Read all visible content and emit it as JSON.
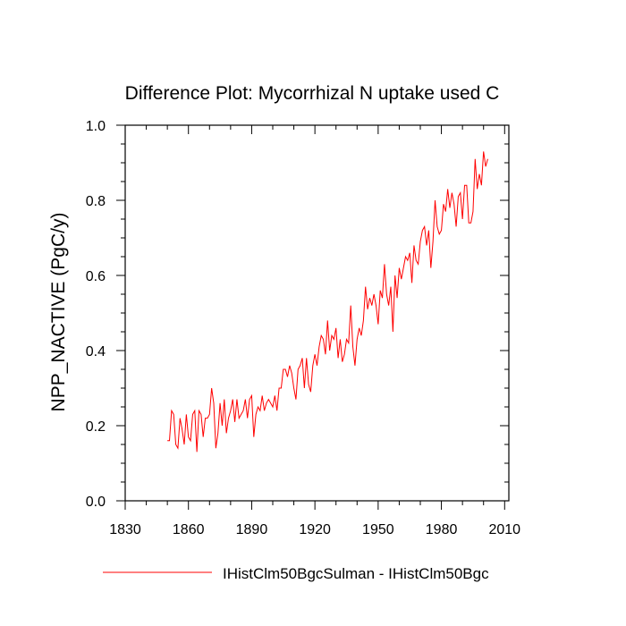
{
  "chart_data": {
    "type": "line",
    "title": "Difference Plot: Mycorrhizal N uptake used C",
    "ylabel": "NPP_NACTIVE  (PgC/y)",
    "xlabel": "",
    "xlim": [
      1830,
      2012
    ],
    "ylim": [
      0.0,
      1.0
    ],
    "xticks": [
      1830,
      1860,
      1890,
      1920,
      1950,
      1980,
      2010
    ],
    "yticks": [
      0.0,
      0.2,
      0.4,
      0.6,
      0.8,
      1.0
    ],
    "ytick_labels": [
      "0.0",
      "0.2",
      "0.4",
      "0.6",
      "0.8",
      "1.0"
    ],
    "legend": "bottom",
    "grid": false,
    "series": [
      {
        "name": "IHistClm50BgcSulman - IHistClm50Bgc",
        "color": "#ff0000",
        "x_start": 1850,
        "x_step": 1,
        "values": [
          0.16,
          0.16,
          0.24,
          0.23,
          0.15,
          0.14,
          0.22,
          0.19,
          0.15,
          0.23,
          0.17,
          0.16,
          0.23,
          0.24,
          0.13,
          0.24,
          0.23,
          0.17,
          0.22,
          0.22,
          0.23,
          0.3,
          0.26,
          0.14,
          0.18,
          0.26,
          0.2,
          0.27,
          0.18,
          0.22,
          0.24,
          0.27,
          0.21,
          0.27,
          0.22,
          0.23,
          0.24,
          0.27,
          0.22,
          0.27,
          0.28,
          0.17,
          0.23,
          0.25,
          0.24,
          0.28,
          0.24,
          0.26,
          0.27,
          0.26,
          0.25,
          0.28,
          0.24,
          0.3,
          0.3,
          0.35,
          0.35,
          0.33,
          0.36,
          0.34,
          0.3,
          0.27,
          0.35,
          0.36,
          0.38,
          0.3,
          0.38,
          0.31,
          0.29,
          0.36,
          0.39,
          0.36,
          0.41,
          0.44,
          0.43,
          0.39,
          0.48,
          0.4,
          0.44,
          0.43,
          0.46,
          0.38,
          0.43,
          0.37,
          0.39,
          0.43,
          0.42,
          0.52,
          0.41,
          0.36,
          0.43,
          0.46,
          0.44,
          0.48,
          0.57,
          0.51,
          0.54,
          0.52,
          0.55,
          0.52,
          0.47,
          0.56,
          0.54,
          0.63,
          0.55,
          0.52,
          0.57,
          0.45,
          0.6,
          0.54,
          0.62,
          0.59,
          0.62,
          0.65,
          0.64,
          0.66,
          0.58,
          0.68,
          0.64,
          0.63,
          0.69,
          0.72,
          0.73,
          0.68,
          0.72,
          0.62,
          0.69,
          0.8,
          0.73,
          0.71,
          0.72,
          0.79,
          0.77,
          0.83,
          0.78,
          0.82,
          0.79,
          0.73,
          0.81,
          0.82,
          0.75,
          0.84,
          0.84,
          0.74,
          0.74,
          0.77,
          0.91,
          0.83,
          0.87,
          0.84,
          0.93,
          0.89,
          0.91
        ]
      }
    ]
  }
}
